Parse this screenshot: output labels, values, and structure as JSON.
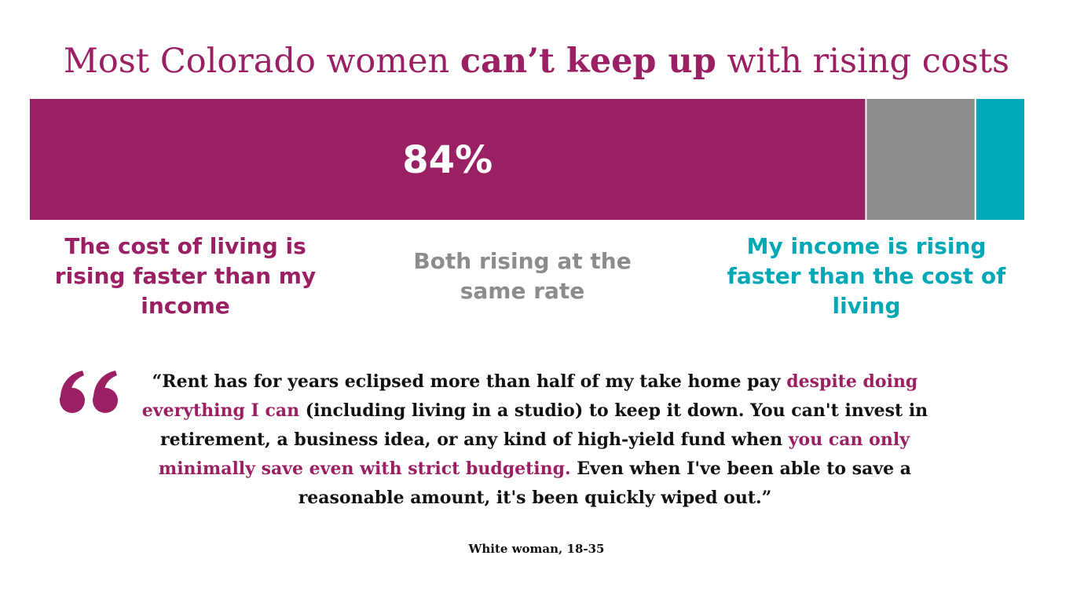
{
  "title": {
    "before": "Most Colorado women ",
    "bold": "can’t keep up",
    "after": " with rising costs"
  },
  "chart_data": {
    "type": "bar",
    "orientation": "horizontal-stacked",
    "xlim": [
      0,
      100
    ],
    "segments": [
      {
        "name": "The cost of living is rising faster than my income",
        "value": 84,
        "label": "84%",
        "color": "#9b1f63"
      },
      {
        "name": "Both rising at the same rate",
        "value": 11,
        "label": "",
        "color": "#8c8c8c"
      },
      {
        "name": "My income is rising faster than the cost of living",
        "value": 5,
        "label": "",
        "color": "#00a7b5"
      }
    ]
  },
  "categories": {
    "a": {
      "text": "The cost of living is rising faster than my income",
      "color": "#9b1f63"
    },
    "b": {
      "text": "Both rising at the same rate",
      "color": "#8c8c8c"
    },
    "c": {
      "text": "My income is rising faster than the cost of living",
      "color": "#00a7b5"
    }
  },
  "quote": {
    "p1": "“Rent has for years eclipsed more than half of my take home pay ",
    "h1": "despite doing everything I can",
    "p2": " (including living in a studio) to keep it down. You can't invest in retirement, a business idea, or any kind of high-yield fund when ",
    "h2": "you can only minimally save even with strict budgeting.",
    "p3": " Even when I've been able to save a reasonable amount, it's been quickly wiped out.”",
    "mark_icon": "quotation-mark-icon",
    "mark_color": "#9b1f63"
  },
  "attribution": "White woman, 18-35"
}
